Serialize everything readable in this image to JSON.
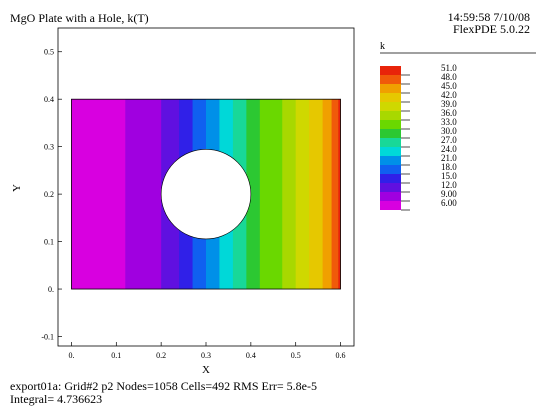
{
  "header": {
    "title": "MgO Plate with a Hole, k(T)",
    "timestamp": "14:59:58 7/10/08",
    "version": "FlexPDE 5.0.22"
  },
  "footer": {
    "line1": "export01a:  Grid#2  p2  Nodes=1058 Cells=492 RMS Err= 5.8e-5",
    "line2": "Integral=  4.736623"
  },
  "chart_data": {
    "type": "heatmap",
    "title": "MgO Plate with a Hole, k(T)",
    "xlabel": "X",
    "ylabel": "Y",
    "xlim": [
      -0.03,
      0.63
    ],
    "ylim": [
      -0.12,
      0.55
    ],
    "x_ticks": [
      "0.",
      "0.1",
      "0.2",
      "0.3",
      "0.4",
      "0.5",
      "0.6"
    ],
    "x_tick_values": [
      0,
      0.1,
      0.2,
      0.3,
      0.4,
      0.5,
      0.6
    ],
    "y_ticks": [
      "-0.1",
      "0.",
      "0.1",
      "0.2",
      "0.3",
      "0.4",
      "0.5"
    ],
    "y_tick_values": [
      -0.1,
      0,
      0.1,
      0.2,
      0.3,
      0.4,
      0.5
    ],
    "domain": {
      "x": [
        0,
        0.6
      ],
      "y": [
        0,
        0.4
      ]
    },
    "hole": {
      "cx": 0.3,
      "cy": 0.2,
      "r": 0.1
    },
    "legend": {
      "title": "k",
      "labels": [
        "51.0",
        "48.0",
        "45.0",
        "42.0",
        "39.0",
        "36.0",
        "33.0",
        "30.0",
        "27.0",
        "24.0",
        "21.0",
        "18.0",
        "15.0",
        "12.0",
        "9.00",
        "6.00"
      ],
      "colors": [
        "#e8240a",
        "#f05a0a",
        "#f0a000",
        "#e6c800",
        "#cfd800",
        "#a8d800",
        "#6ad800",
        "#2cc832",
        "#18d898",
        "#00d8d8",
        "#0090e8",
        "#1060f0",
        "#3020e8",
        "#6010e0",
        "#a000e0",
        "#d800e0"
      ]
    },
    "bands": [
      {
        "x": [
          0.0,
          0.12
        ],
        "k": 6.0
      },
      {
        "x": [
          0.12,
          0.2
        ],
        "k": 9.0
      },
      {
        "x": [
          0.2,
          0.24
        ],
        "k": 12.0
      },
      {
        "x": [
          0.24,
          0.27
        ],
        "k": 15.0
      },
      {
        "x": [
          0.27,
          0.3
        ],
        "k": 18.0
      },
      {
        "x": [
          0.3,
          0.33
        ],
        "k": 21.0
      },
      {
        "x": [
          0.33,
          0.36
        ],
        "k": 24.0
      },
      {
        "x": [
          0.36,
          0.39
        ],
        "k": 27.0
      },
      {
        "x": [
          0.39,
          0.42
        ],
        "k": 30.0
      },
      {
        "x": [
          0.42,
          0.47
        ],
        "k": 33.0
      },
      {
        "x": [
          0.47,
          0.5
        ],
        "k": 36.0
      },
      {
        "x": [
          0.5,
          0.53
        ],
        "k": 39.0
      },
      {
        "x": [
          0.53,
          0.56
        ],
        "k": 42.0
      },
      {
        "x": [
          0.56,
          0.58
        ],
        "k": 45.0
      },
      {
        "x": [
          0.58,
          0.595
        ],
        "k": 48.0
      },
      {
        "x": [
          0.595,
          0.6
        ],
        "k": 51.0
      }
    ]
  }
}
